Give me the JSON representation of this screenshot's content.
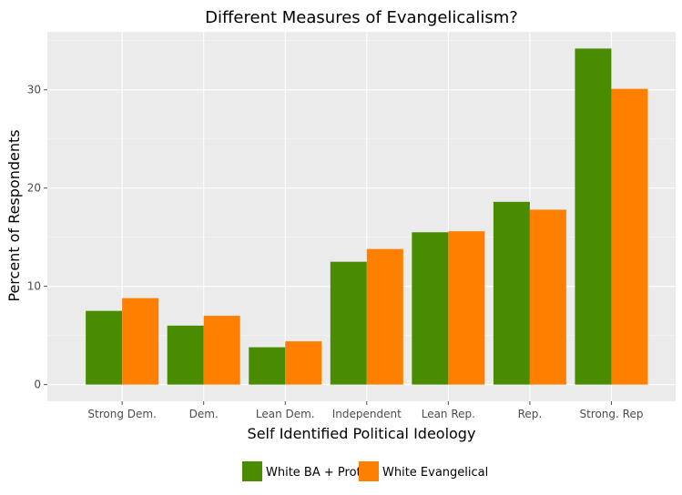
{
  "chart_data": {
    "type": "bar",
    "title": "Different Measures of Evangelicalism?",
    "xlabel": "Self Identified Political Ideology",
    "ylabel": "Percent of Respondents",
    "categories": [
      "Strong Dem.",
      "Dem.",
      "Lean Dem.",
      "Independent",
      "Lean Rep.",
      "Rep.",
      "Strong. Rep"
    ],
    "series": [
      {
        "name": "White BA + Prot",
        "color": "#4a8c00",
        "values": [
          7.5,
          6.0,
          3.8,
          12.5,
          15.5,
          18.6,
          34.2
        ]
      },
      {
        "name": "White Evangelical",
        "color": "#ff7f00",
        "values": [
          8.8,
          7.0,
          4.4,
          13.8,
          15.6,
          17.8,
          30.1
        ]
      }
    ],
    "ylim": [
      -1.7,
      35.9
    ],
    "yticks": [
      0,
      10,
      20,
      30
    ],
    "grid": true,
    "legend_position": "bottom",
    "panel_background": "#ebebeb"
  }
}
